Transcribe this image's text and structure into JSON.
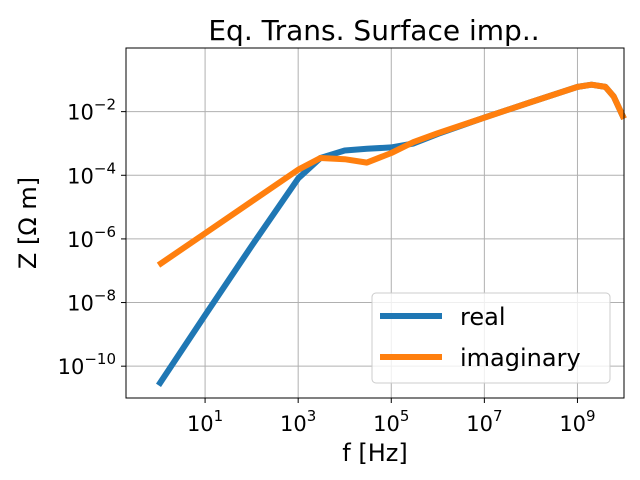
{
  "chart_data": {
    "type": "line",
    "title": "Eq. Trans. Surface imp..",
    "xlabel": "f [Hz]",
    "ylabel": "Z [Ω m]",
    "xscale": "log",
    "yscale": "log",
    "xlim": [
      0.2,
      10000000000.0
    ],
    "ylim": [
      1e-11,
      1.0
    ],
    "grid": true,
    "legend_position": "lower right",
    "x_ticks": [
      {
        "base": "10",
        "exp": "1",
        "value": 10
      },
      {
        "base": "10",
        "exp": "3",
        "value": 1000
      },
      {
        "base": "10",
        "exp": "5",
        "value": 100000
      },
      {
        "base": "10",
        "exp": "7",
        "value": 10000000
      },
      {
        "base": "10",
        "exp": "9",
        "value": 1000000000
      }
    ],
    "y_ticks": [
      {
        "base": "10",
        "exp": "−2",
        "value": 0.01
      },
      {
        "base": "10",
        "exp": "−4",
        "value": 0.0001
      },
      {
        "base": "10",
        "exp": "−6",
        "value": 1e-06
      },
      {
        "base": "10",
        "exp": "−8",
        "value": 1e-08
      },
      {
        "base": "10",
        "exp": "−10",
        "value": 1e-10
      }
    ],
    "series": [
      {
        "name": "real",
        "color": "#1f77b4",
        "x": [
          1,
          10,
          100,
          1000,
          3000,
          10000,
          30000,
          100000,
          300000,
          1000000,
          10000000,
          100000000,
          1000000000,
          2000000000,
          4000000000,
          6000000000,
          10000000000
        ],
        "y": [
          2.5e-11,
          4e-09,
          6e-07,
          8e-05,
          0.00035,
          0.0006,
          0.00068,
          0.00075,
          0.001,
          0.002,
          0.0065,
          0.02,
          0.06,
          0.07,
          0.06,
          0.03,
          0.006
        ]
      },
      {
        "name": "imaginary",
        "color": "#ff7f0e",
        "x": [
          1,
          10,
          100,
          1000,
          3000,
          10000,
          30000,
          100000,
          300000,
          1000000,
          10000000,
          100000000,
          1000000000,
          2000000000,
          4000000000,
          6000000000,
          10000000000
        ],
        "y": [
          1.5e-07,
          1.5e-06,
          1.5e-05,
          0.00015,
          0.00035,
          0.00032,
          0.00025,
          0.0005,
          0.0011,
          0.0021,
          0.0065,
          0.02,
          0.06,
          0.07,
          0.06,
          0.03,
          0.006
        ]
      }
    ]
  }
}
